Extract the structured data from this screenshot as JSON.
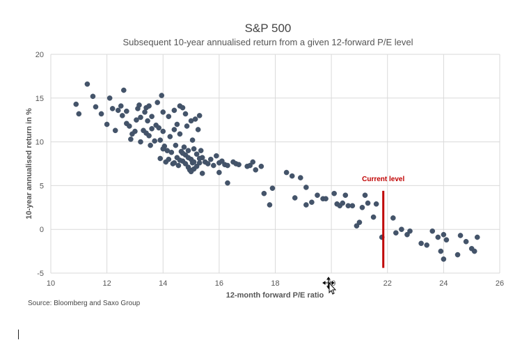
{
  "chart_data": {
    "type": "scatter",
    "title": "S&P 500",
    "subtitle": "Subsequent 10-year annualised return from a given 12-forward P/E level",
    "xlabel": "12-month forward P/E ratio",
    "ylabel": "10-year annualised return in %",
    "xlim": [
      10,
      26
    ],
    "ylim": [
      -5,
      20
    ],
    "xticks": [
      10,
      12,
      14,
      16,
      18,
      20,
      22,
      24,
      26
    ],
    "yticks": [
      -5,
      0,
      5,
      10,
      15,
      20
    ],
    "grid": true,
    "annotation": {
      "text": "Current level",
      "x": 21.85,
      "y_range": [
        -4.4,
        4.4
      ]
    },
    "series": [
      {
        "color": "#44546a",
        "points": [
          [
            10.9,
            14.3
          ],
          [
            11.0,
            13.2
          ],
          [
            11.3,
            16.6
          ],
          [
            11.5,
            15.2
          ],
          [
            11.6,
            14.0
          ],
          [
            11.8,
            13.2
          ],
          [
            12.0,
            12.0
          ],
          [
            12.1,
            15.0
          ],
          [
            12.2,
            13.8
          ],
          [
            12.3,
            11.3
          ],
          [
            12.4,
            13.6
          ],
          [
            12.5,
            14.1
          ],
          [
            12.55,
            13.0
          ],
          [
            12.6,
            15.9
          ],
          [
            12.7,
            13.5
          ],
          [
            12.7,
            12.1
          ],
          [
            12.8,
            11.8
          ],
          [
            12.85,
            10.3
          ],
          [
            12.9,
            10.9
          ],
          [
            13.0,
            11.2
          ],
          [
            13.05,
            12.5
          ],
          [
            13.1,
            13.8
          ],
          [
            13.15,
            14.2
          ],
          [
            13.2,
            12.8
          ],
          [
            13.2,
            10.0
          ],
          [
            13.3,
            11.3
          ],
          [
            13.35,
            13.4
          ],
          [
            13.4,
            13.9
          ],
          [
            13.4,
            11.0
          ],
          [
            13.45,
            12.4
          ],
          [
            13.5,
            14.1
          ],
          [
            13.5,
            10.7
          ],
          [
            13.55,
            9.6
          ],
          [
            13.6,
            11.5
          ],
          [
            13.6,
            12.9
          ],
          [
            13.7,
            10.1
          ],
          [
            13.75,
            11.9
          ],
          [
            13.8,
            14.5
          ],
          [
            13.85,
            11.6
          ],
          [
            13.9,
            10.2
          ],
          [
            13.9,
            8.1
          ],
          [
            13.95,
            15.3
          ],
          [
            14.0,
            13.4
          ],
          [
            14.0,
            11.2
          ],
          [
            14.05,
            9.5
          ],
          [
            14.1,
            7.7
          ],
          [
            14.15,
            9.0
          ],
          [
            14.2,
            12.9
          ],
          [
            14.25,
            10.6
          ],
          [
            14.3,
            8.8
          ],
          [
            14.35,
            7.5
          ],
          [
            14.4,
            11.4
          ],
          [
            14.4,
            13.6
          ],
          [
            14.45,
            9.6
          ],
          [
            14.5,
            8.2
          ],
          [
            14.5,
            12.0
          ],
          [
            14.55,
            7.3
          ],
          [
            14.6,
            14.1
          ],
          [
            14.6,
            10.9
          ],
          [
            14.65,
            8.9
          ],
          [
            14.7,
            13.9
          ],
          [
            14.7,
            7.8
          ],
          [
            14.75,
            9.4
          ],
          [
            14.8,
            8.5
          ],
          [
            14.8,
            13.2
          ],
          [
            14.85,
            11.8
          ],
          [
            14.9,
            7.1
          ],
          [
            14.9,
            9.0
          ],
          [
            14.95,
            6.8
          ],
          [
            15.0,
            8.0
          ],
          [
            15.0,
            12.4
          ],
          [
            15.05,
            7.6
          ],
          [
            15.05,
            10.2
          ],
          [
            15.1,
            6.9
          ],
          [
            15.1,
            9.2
          ],
          [
            15.15,
            12.6
          ],
          [
            15.2,
            8.6
          ],
          [
            15.2,
            7.2
          ],
          [
            15.25,
            11.4
          ],
          [
            15.3,
            13.0
          ],
          [
            15.3,
            7.6
          ],
          [
            15.35,
            9.0
          ],
          [
            15.4,
            6.4
          ],
          [
            15.4,
            8.2
          ],
          [
            15.5,
            7.7
          ],
          [
            15.6,
            7.5
          ],
          [
            15.7,
            8.0
          ],
          [
            15.8,
            7.3
          ],
          [
            15.9,
            8.4
          ],
          [
            16.0,
            7.6
          ],
          [
            16.0,
            6.5
          ],
          [
            16.1,
            7.8
          ],
          [
            16.2,
            7.4
          ],
          [
            16.3,
            7.3
          ],
          [
            16.3,
            5.3
          ],
          [
            16.5,
            7.7
          ],
          [
            16.6,
            7.5
          ],
          [
            16.7,
            7.4
          ],
          [
            17.0,
            7.2
          ],
          [
            17.1,
            7.3
          ],
          [
            17.2,
            7.7
          ],
          [
            17.3,
            6.8
          ],
          [
            17.5,
            7.2
          ],
          [
            17.6,
            4.1
          ],
          [
            17.8,
            2.8
          ],
          [
            17.9,
            4.7
          ],
          [
            18.4,
            6.5
          ],
          [
            18.6,
            6.1
          ],
          [
            18.7,
            3.6
          ],
          [
            18.9,
            5.9
          ],
          [
            19.1,
            4.8
          ],
          [
            19.1,
            2.8
          ],
          [
            19.3,
            3.1
          ],
          [
            19.5,
            3.9
          ],
          [
            19.7,
            3.5
          ],
          [
            19.8,
            3.5
          ],
          [
            20.1,
            4.1
          ],
          [
            20.2,
            2.9
          ],
          [
            20.3,
            2.7
          ],
          [
            20.4,
            3.0
          ],
          [
            20.5,
            3.9
          ],
          [
            20.6,
            2.7
          ],
          [
            20.75,
            2.7
          ],
          [
            20.9,
            0.4
          ],
          [
            21.0,
            0.8
          ],
          [
            21.1,
            2.5
          ],
          [
            21.2,
            3.9
          ],
          [
            21.3,
            3.0
          ],
          [
            21.5,
            1.4
          ],
          [
            21.6,
            2.9
          ],
          [
            21.8,
            -0.9
          ],
          [
            22.2,
            1.3
          ],
          [
            22.3,
            -0.4
          ],
          [
            22.5,
            0.0
          ],
          [
            22.7,
            -0.6
          ],
          [
            22.8,
            -0.2
          ],
          [
            23.2,
            -1.6
          ],
          [
            23.4,
            -1.8
          ],
          [
            23.6,
            -0.2
          ],
          [
            23.8,
            -0.9
          ],
          [
            23.9,
            -2.5
          ],
          [
            24.0,
            -3.4
          ],
          [
            24.0,
            -0.6
          ],
          [
            24.1,
            -1.2
          ],
          [
            24.5,
            -2.9
          ],
          [
            24.6,
            -0.7
          ],
          [
            24.8,
            -1.4
          ],
          [
            25.0,
            -2.2
          ],
          [
            25.1,
            -2.5
          ],
          [
            25.2,
            -0.9
          ],
          [
            14.0,
            9.2
          ],
          [
            14.2,
            8.0
          ],
          [
            14.6,
            7.9
          ],
          [
            14.8,
            7.5
          ],
          [
            15.0,
            6.6
          ],
          [
            14.9,
            8.2
          ],
          [
            15.1,
            7.7
          ],
          [
            14.4,
            7.6
          ],
          [
            14.7,
            8.7
          ],
          [
            15.3,
            8.1
          ]
        ]
      }
    ],
    "source": "Source: Bloomberg and Saxo Group"
  },
  "colors": {
    "points": "#44546a",
    "annotation": "#c00000",
    "grid": "#d9d9d9"
  },
  "cursors": [
    "text-cursor",
    "move-cursor"
  ]
}
